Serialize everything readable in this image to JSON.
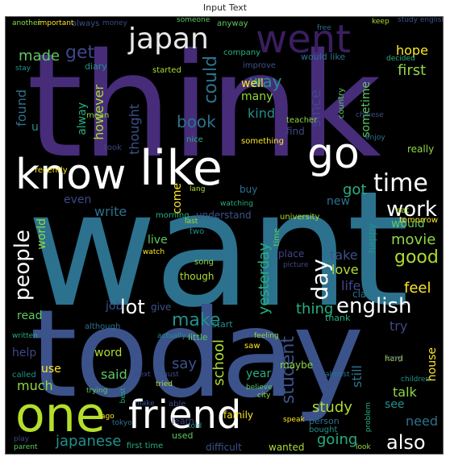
{
  "title": "Input Text",
  "palette": {
    "purple": "#472c7a",
    "darkpurple": "#3b1e5f",
    "indigo": "#3f4788",
    "blue": "#3b528b",
    "teal": "#2c728e",
    "cyan": "#21918c",
    "green": "#28ae80",
    "lightgreen": "#5ec962",
    "lime": "#addc30",
    "yellow": "#fde725",
    "olive": "#b5de2b",
    "sage": "#90d743"
  },
  "words": [
    "think",
    "want",
    "today",
    "know",
    "like",
    "went",
    "japan",
    "go",
    "time",
    "one",
    "friend",
    "people",
    "work",
    "english",
    "good",
    "day",
    "got",
    "also",
    "could",
    "way",
    "first",
    "hope",
    "get",
    "made",
    "student",
    "school",
    "thing",
    "write",
    "make",
    "movie",
    "feel",
    "life",
    "lot",
    "said",
    "say",
    "study",
    "going",
    "need",
    "japanese",
    "much",
    "use",
    "help",
    "read",
    "take",
    "love",
    "yesterday",
    "book",
    "kind",
    "many",
    "well",
    "since",
    "sometime",
    "thought",
    "however",
    "alway",
    "found",
    "u",
    "world",
    "come",
    "even",
    "live",
    "job",
    "word",
    "year",
    "still",
    "see",
    "talk",
    "house",
    "try",
    "would",
    "understand",
    "university",
    "morning",
    "new",
    "happy",
    "really",
    "tomorrow",
    "place",
    "little",
    "give",
    "though",
    "thank",
    "class",
    "start",
    "maybe",
    "family",
    "learn",
    "used",
    "difficult",
    "wanted",
    "first time",
    "person",
    "bought",
    "teacher",
    "something",
    "find",
    "country",
    "improve",
    "started",
    "company",
    "would like",
    "diary",
    "mean",
    "recently",
    "took",
    "anyway",
    "always",
    "hard",
    "nice",
    "buy",
    "two",
    "song",
    "watch",
    "picture",
    "time",
    "chinese",
    "eat",
    "decided",
    "enjoy",
    "called",
    "another",
    "important",
    "money",
    "someone",
    "study english",
    "lang",
    "watching",
    "although",
    "actually",
    "feeling",
    "saw",
    "able",
    "believe",
    "make",
    "last",
    "problem",
    "almost",
    "children",
    "city",
    "ago",
    "next",
    "trying",
    "must",
    "tried",
    "best",
    "tokyo",
    "told",
    "look",
    "speak",
    "play",
    "parent",
    "long",
    "keep",
    "written",
    "free",
    "stay"
  ]
}
